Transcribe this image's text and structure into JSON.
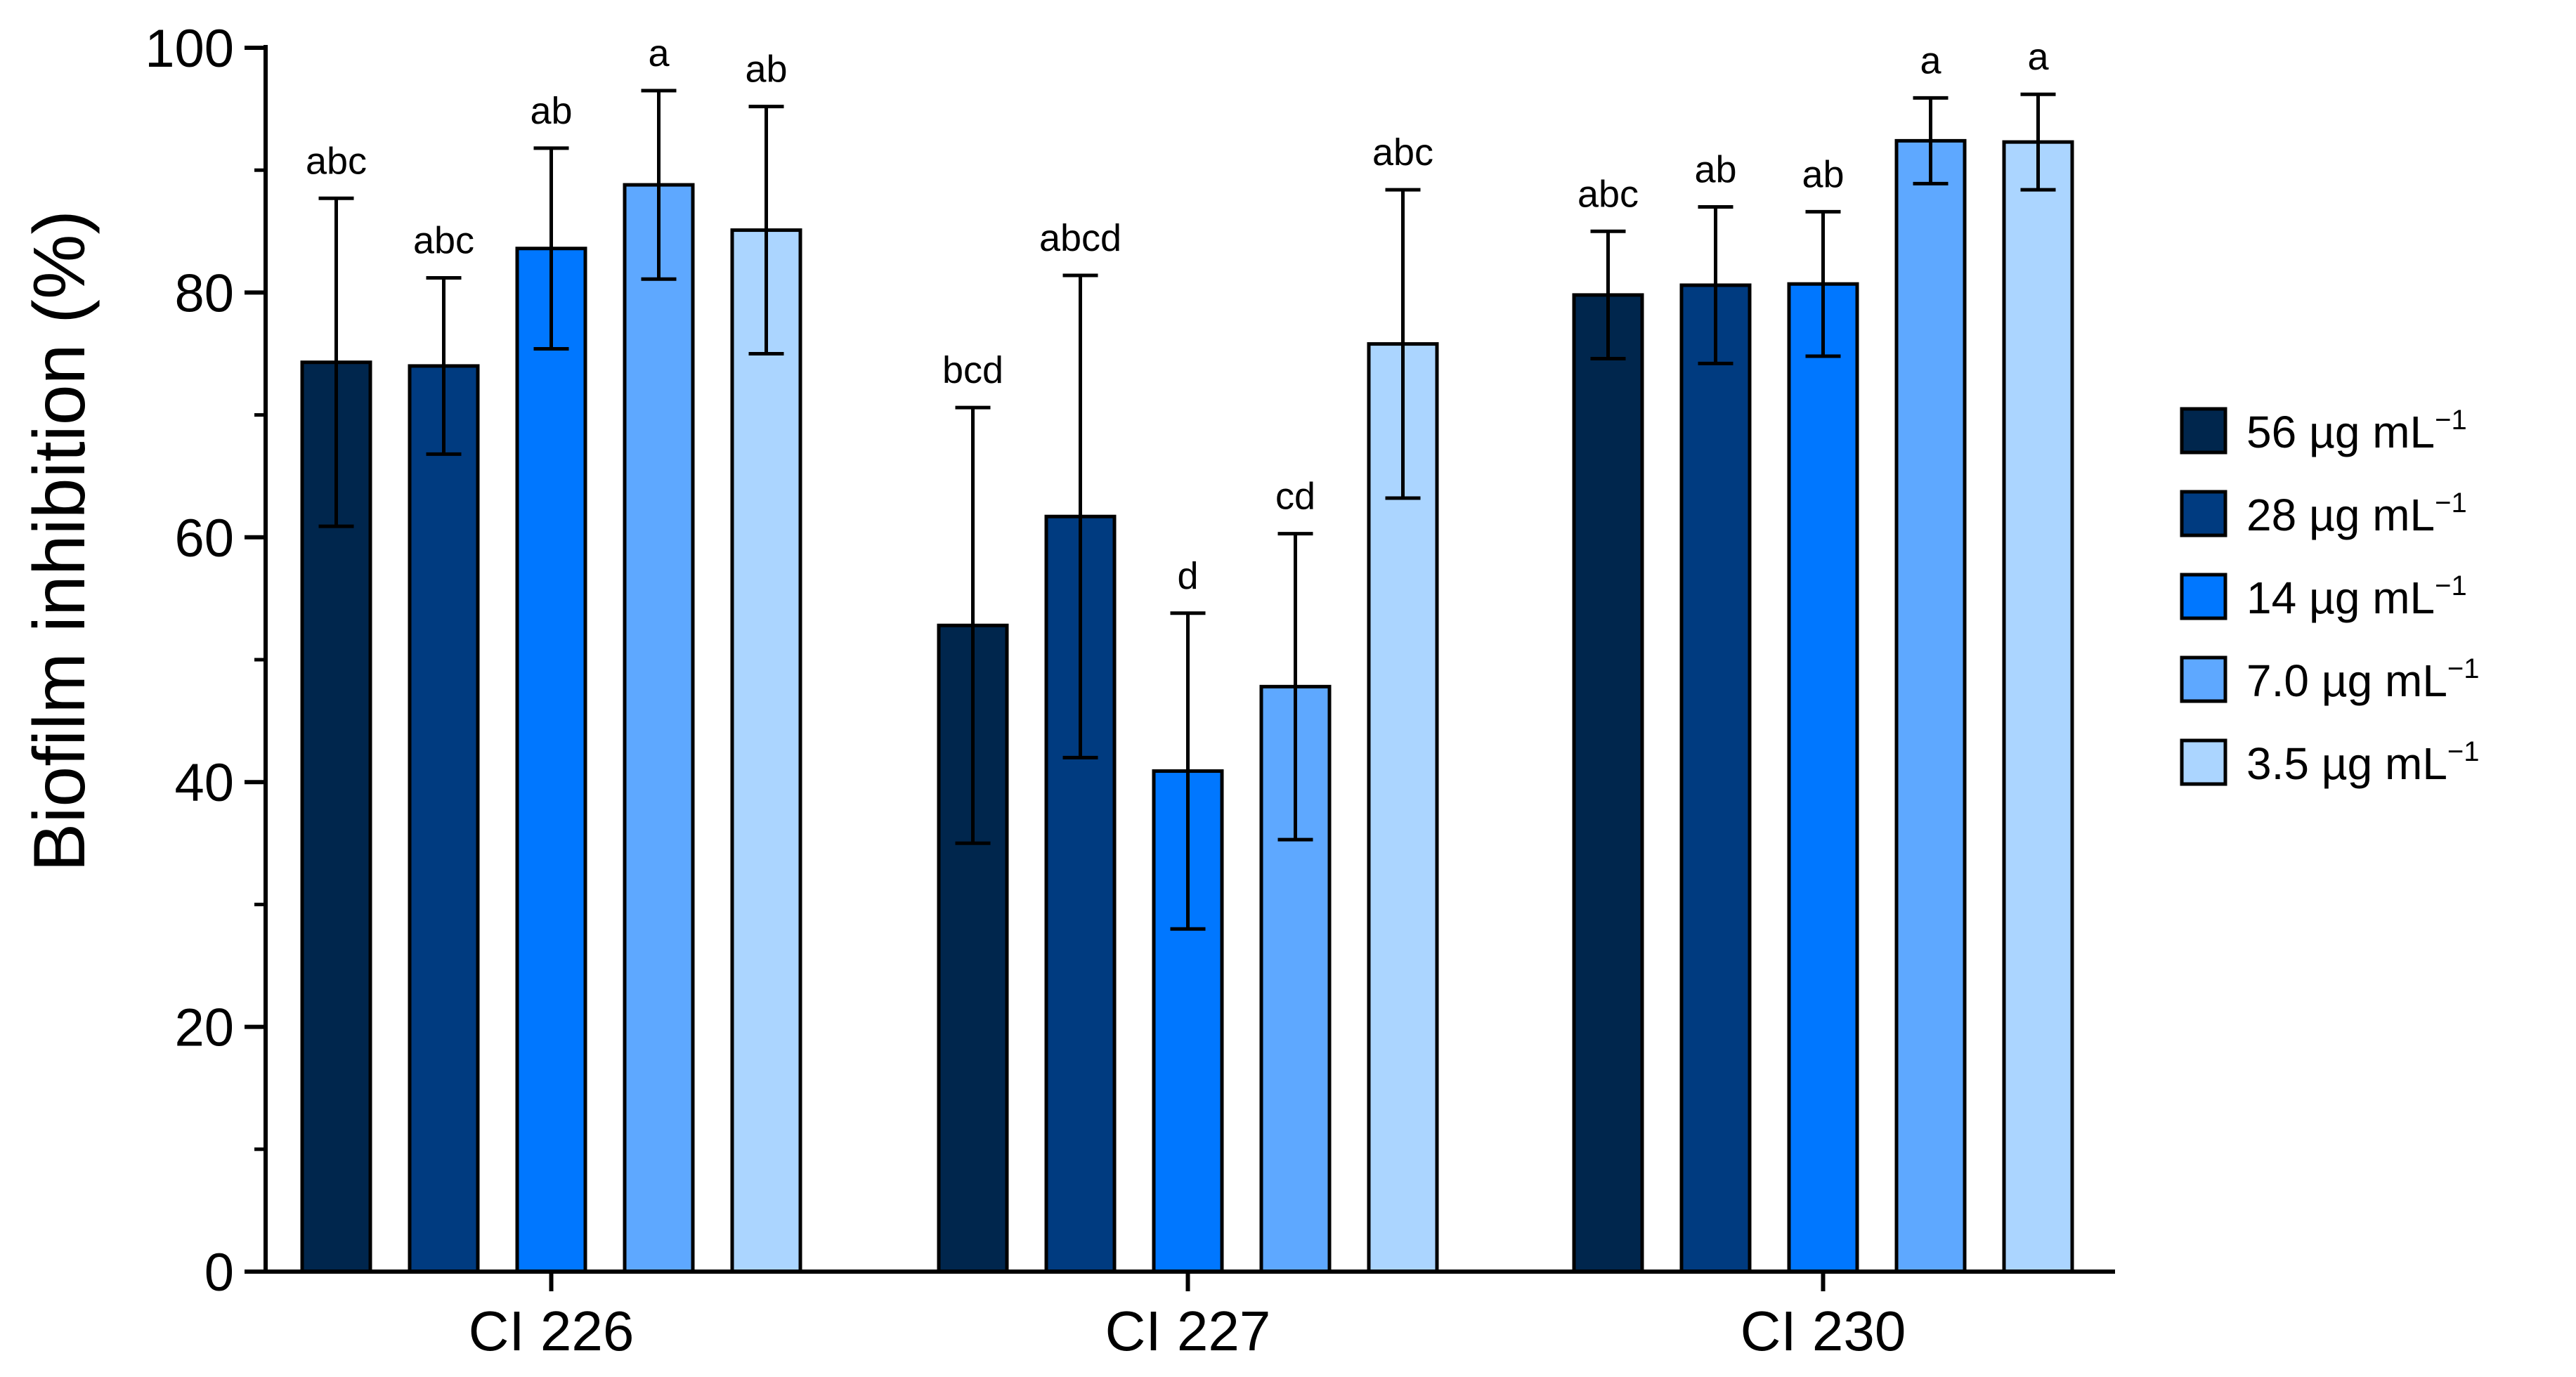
{
  "chart_data": {
    "type": "bar",
    "title": "",
    "xlabel": "",
    "ylabel": "Biofilm inhibition (%)",
    "ylim": [
      0,
      100
    ],
    "yticks": [
      "0",
      "20",
      "40",
      "60",
      "80",
      "100"
    ],
    "categories": [
      "CI 226",
      "CI 227",
      "CI 230"
    ],
    "series": [
      {
        "name": "56 µg mL",
        "sup": "−1",
        "color": "#00264d",
        "values": [
          74.3,
          52.8,
          79.8
        ],
        "errors": [
          13.4,
          17.8,
          5.2
        ],
        "letters": [
          "abc",
          "bcd",
          "abc"
        ]
      },
      {
        "name": "28 µg mL",
        "sup": "−1",
        "color": "#003b80",
        "values": [
          74.0,
          61.7,
          80.6
        ],
        "errors": [
          7.2,
          19.7,
          6.4
        ],
        "letters": [
          "abc",
          "abcd",
          "ab"
        ]
      },
      {
        "name": "14 µg mL",
        "sup": "−1",
        "color": "#0077ff",
        "values": [
          83.6,
          40.9,
          80.7
        ],
        "errors": [
          8.2,
          12.9,
          5.9
        ],
        "letters": [
          "ab",
          "d",
          "ab"
        ]
      },
      {
        "name": "7.0 µg mL",
        "sup": "−1",
        "color": "#5ea8ff",
        "values": [
          88.8,
          47.8,
          92.4
        ],
        "errors": [
          7.7,
          12.5,
          3.5
        ],
        "letters": [
          "a",
          "cd",
          "a"
        ]
      },
      {
        "name": "3.5 µg mL",
        "sup": "−1",
        "color": "#abd5ff",
        "values": [
          85.1,
          75.8,
          92.3
        ],
        "errors": [
          10.1,
          12.6,
          3.9
        ],
        "letters": [
          "ab",
          "abc",
          "a"
        ]
      }
    ]
  }
}
